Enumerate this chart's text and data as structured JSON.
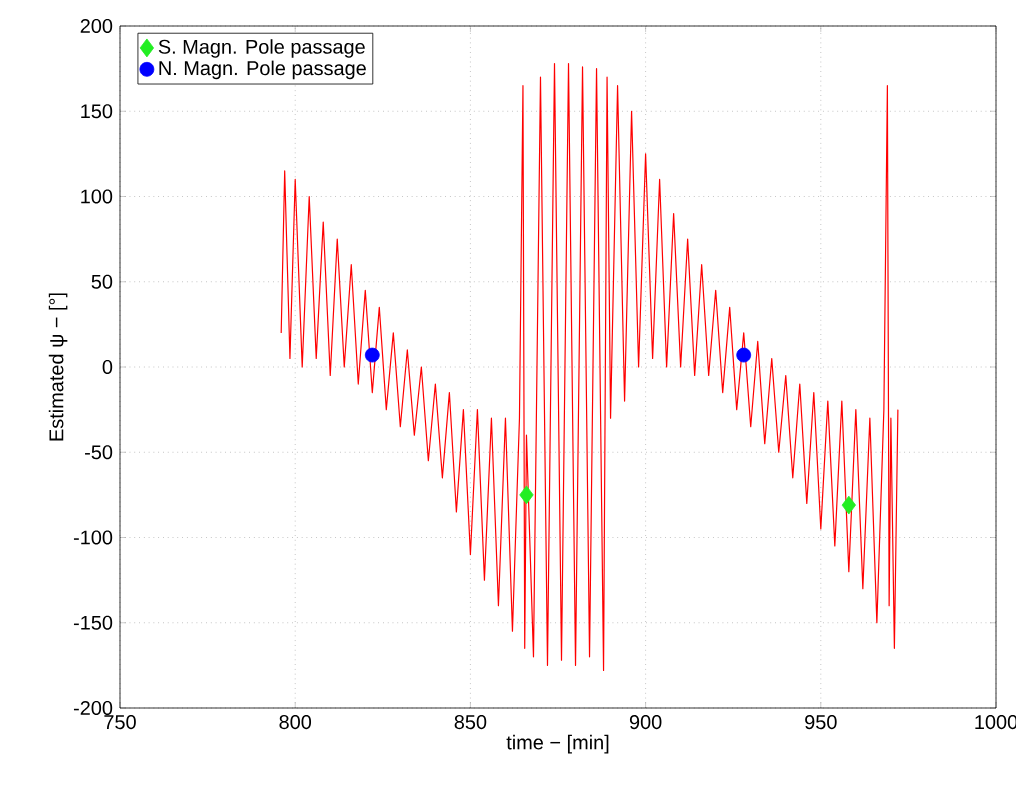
{
  "chart_data": {
    "type": "line",
    "xlabel": "time − [min]",
    "ylabel": "Estimated ψ − [°]",
    "xlim": [
      750,
      1000
    ],
    "ylim": [
      -200,
      200
    ],
    "xticks": [
      750,
      800,
      850,
      900,
      950,
      1000
    ],
    "yticks": [
      -200,
      -150,
      -100,
      -50,
      0,
      50,
      100,
      150,
      200
    ],
    "grid": true,
    "legend": "top left",
    "line_style": "solid",
    "series": [
      {
        "color": "#ff0000",
        "marker": "none",
        "x": [
          796,
          797,
          798.5,
          800,
          802,
          804,
          806,
          808,
          810,
          812,
          814,
          816,
          818,
          820,
          822,
          824,
          826,
          828,
          830,
          832,
          834,
          836,
          838,
          840,
          842,
          844,
          846,
          848,
          850,
          852,
          854,
          856,
          858,
          860,
          862,
          864,
          865,
          865.5,
          866,
          868,
          870,
          872,
          874,
          876,
          878,
          880,
          882,
          884,
          886,
          888,
          889,
          890,
          892,
          894,
          896,
          898,
          900,
          902,
          904,
          906,
          908,
          910,
          912,
          914,
          916,
          918,
          920,
          922,
          924,
          926,
          928,
          930,
          932,
          934,
          936,
          938,
          940,
          942,
          944,
          946,
          948,
          950,
          952,
          954,
          956,
          958,
          960,
          962,
          964,
          966,
          968,
          969,
          969.5,
          970,
          971,
          972
        ],
        "values": [
          20,
          115,
          5,
          110,
          0,
          100,
          5,
          85,
          -5,
          75,
          0,
          60,
          -10,
          45,
          -15,
          35,
          -25,
          20,
          -35,
          10,
          -40,
          0,
          -55,
          -10,
          -65,
          -15,
          -85,
          -25,
          -110,
          -25,
          -125,
          -30,
          -140,
          -30,
          -155,
          -30,
          165,
          -165,
          -40,
          -170,
          170,
          -175,
          178,
          -172,
          178,
          -175,
          176,
          -170,
          175,
          -178,
          170,
          -30,
          165,
          -20,
          150,
          0,
          125,
          5,
          110,
          0,
          90,
          0,
          75,
          -5,
          60,
          -5,
          45,
          -15,
          35,
          -25,
          20,
          -35,
          15,
          -45,
          5,
          -50,
          -5,
          -65,
          -10,
          -80,
          -15,
          -95,
          -20,
          -105,
          -20,
          -120,
          -25,
          -130,
          -30,
          -150,
          -25,
          165,
          -140,
          -30,
          -165,
          -25
        ]
      },
      {
        "type": "scatter",
        "name": "S. Magn. Pole passage",
        "color": "#22ee22",
        "marker": "diamond",
        "x": [
          866,
          958
        ],
        "values": [
          -75,
          -81
        ]
      },
      {
        "type": "scatter",
        "name": "N. Magn. Pole passage",
        "color": "#0000ff",
        "marker": "circle",
        "x": [
          822,
          928
        ],
        "values": [
          7,
          7
        ]
      }
    ]
  }
}
